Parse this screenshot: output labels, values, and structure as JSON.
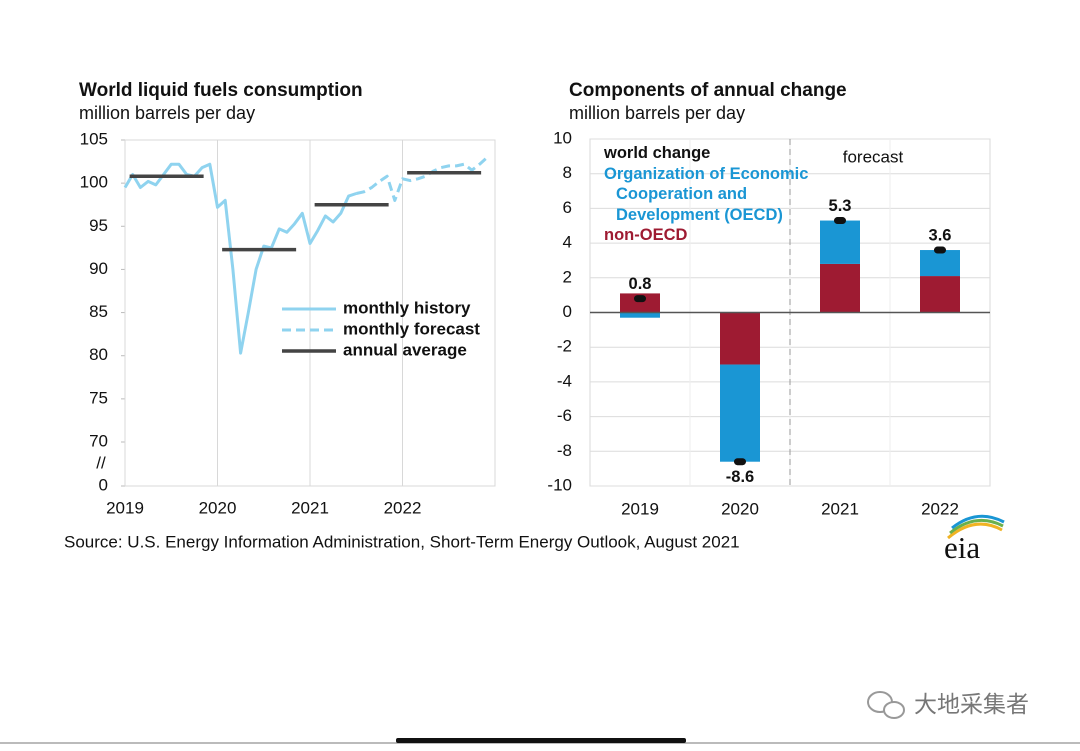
{
  "chart_data": [
    {
      "type": "line",
      "title": "World liquid fuels consumption",
      "subtitle": "million barrels per day",
      "x": [
        2019,
        2019.083,
        2019.167,
        2019.25,
        2019.333,
        2019.417,
        2019.5,
        2019.583,
        2019.667,
        2019.75,
        2019.833,
        2019.917,
        2020,
        2020.083,
        2020.167,
        2020.25,
        2020.333,
        2020.417,
        2020.5,
        2020.583,
        2020.667,
        2020.75,
        2020.833,
        2020.917,
        2021,
        2021.083,
        2021.167,
        2021.25,
        2021.333,
        2021.417,
        2021.5,
        2021.583,
        2021.667,
        2021.75,
        2021.833,
        2021.917,
        2022,
        2022.083,
        2022.167,
        2022.25,
        2022.333,
        2022.417,
        2022.5,
        2022.583,
        2022.667,
        2022.75,
        2022.833,
        2022.917
      ],
      "series": [
        {
          "name": "monthly history",
          "color": "#8fd3ef",
          "dash": false,
          "values": [
            99.5,
            101,
            99.5,
            100.2,
            99.8,
            101,
            102.2,
            102.2,
            101,
            100.8,
            101.8,
            102.2,
            97.2,
            98,
            90,
            80.3,
            85,
            90,
            92.7,
            92.5,
            94.7,
            94.3,
            95.3,
            96.5,
            93,
            94.5,
            96.2,
            95.5,
            96.5,
            98.5,
            98.8,
            null,
            null,
            null,
            null,
            null,
            null,
            null,
            null,
            null,
            null,
            null,
            null,
            null,
            null,
            null,
            null,
            null
          ]
        },
        {
          "name": "monthly forecast",
          "color": "#8fd3ef",
          "dash": true,
          "values": [
            null,
            null,
            null,
            null,
            null,
            null,
            null,
            null,
            null,
            null,
            null,
            null,
            null,
            null,
            null,
            null,
            null,
            null,
            null,
            null,
            null,
            null,
            null,
            null,
            null,
            null,
            null,
            null,
            null,
            null,
            98.8,
            99,
            99.5,
            100.2,
            100.8,
            98,
            100.5,
            100.3,
            100.5,
            100.8,
            101.4,
            101.8,
            102,
            102,
            102.2,
            101.5,
            102.2,
            103
          ]
        },
        {
          "name": "annual average",
          "color": "#444444",
          "dash": false,
          "x": [
            2019,
            2020,
            2021,
            2022
          ],
          "values": [
            100.8,
            92.3,
            97.5,
            101.2
          ]
        }
      ],
      "xlim": [
        2019,
        2023
      ],
      "xticks": [
        2019,
        2020,
        2021,
        2022
      ],
      "ylim": [
        0,
        105
      ],
      "yticks": [
        0,
        70,
        75,
        80,
        85,
        90,
        95,
        100,
        105
      ],
      "axis_break": [
        0,
        70
      ],
      "axis_break_mark": "//",
      "grid": "x",
      "legend": "lower right"
    },
    {
      "type": "stacked_bar",
      "title": "Components of annual change",
      "subtitle": "million barrels per day",
      "categories": [
        "2019",
        "2020",
        "2021",
        "2022"
      ],
      "series": [
        {
          "name": "non-OECD",
          "color": "#9e1b32",
          "values": [
            1.1,
            -3.0,
            2.8,
            2.1
          ]
        },
        {
          "name": "Organization of Economic Cooperation and Development (OECD)",
          "color": "#1a96d4",
          "values": [
            -0.3,
            -5.6,
            2.5,
            1.5
          ]
        }
      ],
      "totals": {
        "name": "world change",
        "color": "#111111",
        "values": [
          0.8,
          -8.6,
          5.3,
          3.6
        ]
      },
      "ylim": [
        -10,
        10
      ],
      "yticks": [
        -10,
        -8,
        -6,
        -4,
        -2,
        0,
        2,
        4,
        6,
        8,
        10
      ],
      "annotation": "forecast",
      "grid": "y",
      "legend": "upper left"
    }
  ],
  "source": "Source: U.S. Energy Information Administration, Short-Term Energy Outlook, August 2021",
  "logo": "eia",
  "watermark": "大地采集者"
}
